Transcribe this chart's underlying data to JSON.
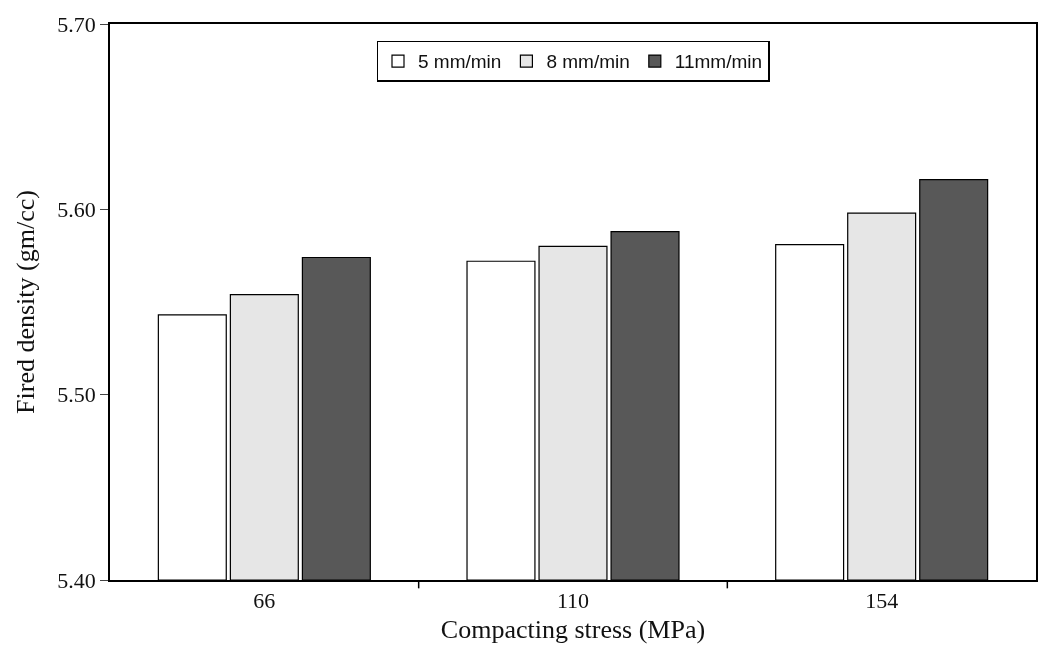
{
  "chart_data": {
    "type": "bar",
    "xlabel": "Compacting stress (MPa)",
    "ylabel": "Fired density (gm/cc)",
    "categories": [
      "66",
      "110",
      "154"
    ],
    "series": [
      {
        "name": "5 mm/min",
        "color": "#ffffff",
        "values": [
          5.543,
          5.572,
          5.581
        ]
      },
      {
        "name": "8 mm/min",
        "color": "#e6e6e6",
        "values": [
          5.554,
          5.58,
          5.598
        ]
      },
      {
        "name": "11mm/min",
        "color": "#585858",
        "values": [
          5.574,
          5.588,
          5.616
        ]
      }
    ],
    "ylim": [
      5.4,
      5.7
    ],
    "yticks": [
      {
        "value": 5.4,
        "label": "5.40"
      },
      {
        "value": 5.5,
        "label": "5.50"
      },
      {
        "value": 5.6,
        "label": "5.60"
      },
      {
        "value": 5.7,
        "label": "5.70"
      }
    ],
    "legend": "top"
  }
}
